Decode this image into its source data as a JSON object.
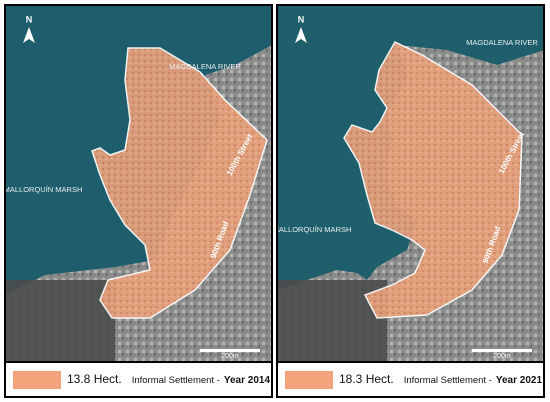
{
  "panels": [
    {
      "labels": {
        "north": "N",
        "river": "MAGDALENA RIVER",
        "marsh": "MALLORQUÍN MARSH",
        "street": "100th Street",
        "road": "90th Road",
        "scale": "200m"
      },
      "legend": {
        "area": "13.8 Hect.",
        "label": "Informal Settlement -",
        "year": "Year 2014"
      }
    },
    {
      "labels": {
        "north": "N",
        "river": "MAGDALENA RIVER",
        "marsh": "MALLORQUÍN MARSH",
        "street": "100th Street",
        "road": "90th Road",
        "scale": "200m"
      },
      "legend": {
        "area": "18.3 Hect.",
        "label": "Informal Settlement -",
        "year": "Year 2021"
      }
    }
  ]
}
